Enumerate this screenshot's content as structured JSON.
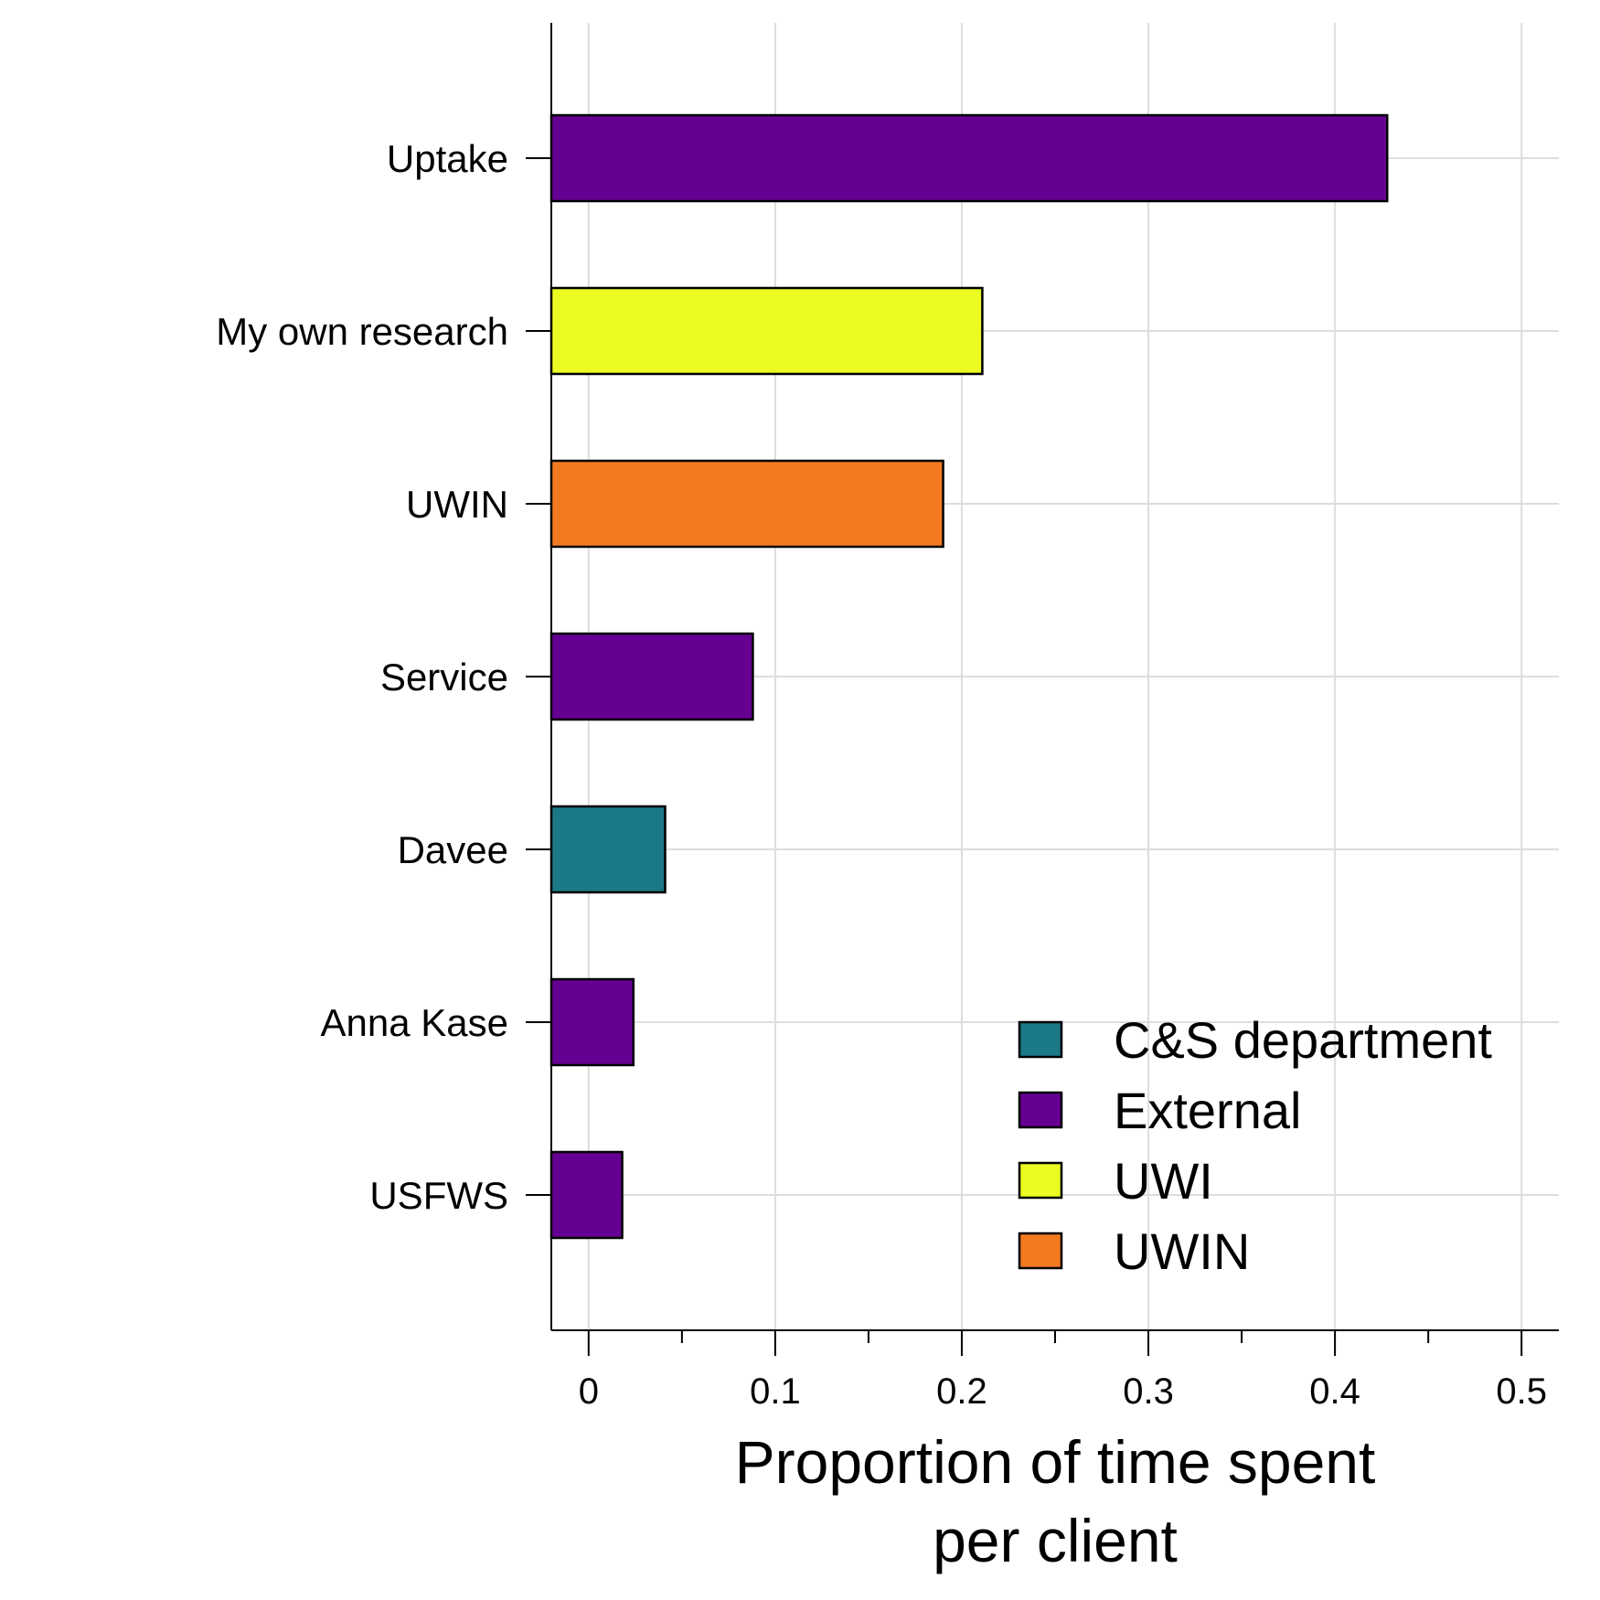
{
  "chart_data": {
    "type": "bar",
    "orientation": "horizontal",
    "categories": [
      "Uptake",
      "My own research",
      "UWIN",
      "Service",
      "Davee",
      "Anna Kase",
      "USFWS"
    ],
    "values": [
      0.428,
      0.211,
      0.19,
      0.088,
      0.041,
      0.024,
      0.018
    ],
    "groups": [
      "External",
      "UWI",
      "UWIN",
      "External",
      "C&S department",
      "External",
      "External"
    ],
    "xlim": [
      -0.02,
      0.52
    ],
    "major_ticks": [
      0,
      0.1,
      0.2,
      0.3,
      0.4,
      0.5
    ],
    "tick_labels": [
      "0",
      "0.1",
      "0.2",
      "0.3",
      "0.4",
      "0.5"
    ],
    "minor_ticks": [
      0.05,
      0.15,
      0.25,
      0.35,
      0.45
    ],
    "xlabel": "Proportion of time spent per client",
    "xlabel_lines": [
      "Proportion of time spent",
      "per client"
    ],
    "ylabel": "",
    "grid": true,
    "legend": {
      "position": "bottom-right",
      "entries": [
        {
          "label": "C&S department",
          "color": "#1b7887"
        },
        {
          "label": "External",
          "color": "#660092"
        },
        {
          "label": "UWI",
          "color": "#ebfc22"
        },
        {
          "label": "UWIN",
          "color": "#f47a22"
        }
      ]
    }
  }
}
